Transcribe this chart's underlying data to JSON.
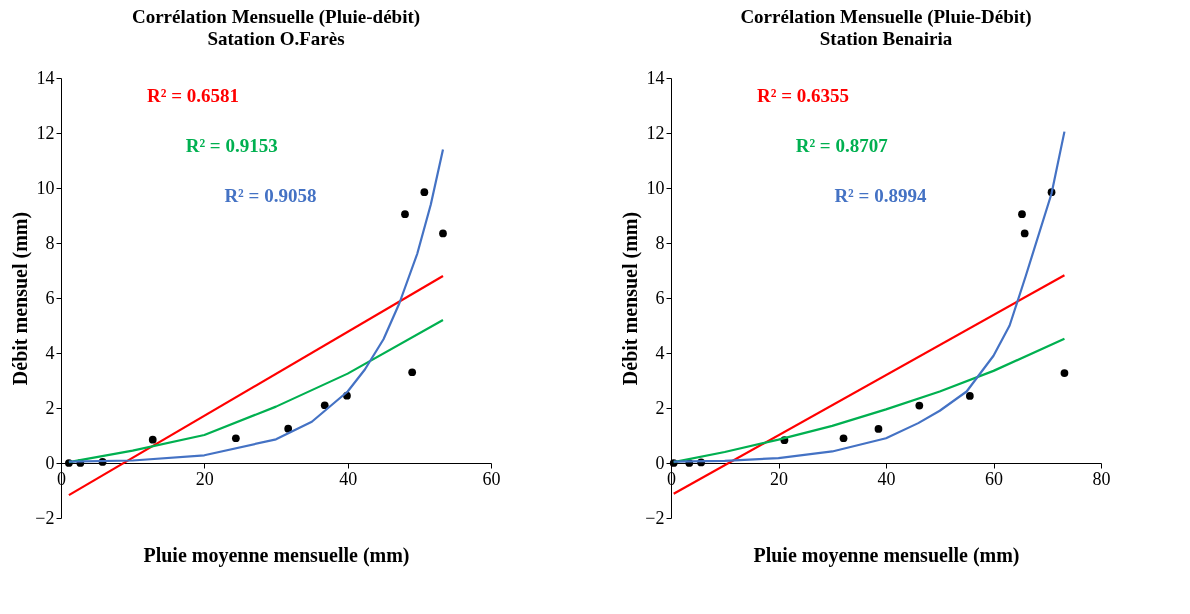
{
  "chart_data": [
    {
      "type": "scatter",
      "title": "Corrélation Mensuelle (Pluie-débit)",
      "subtitle": "Satation O.Farès",
      "xlabel": "Pluie moyenne mensuelle (mm)",
      "ylabel": "Débit mensuel (mm)",
      "xlim": [
        0,
        60
      ],
      "xticks": [
        0,
        20,
        40,
        60
      ],
      "ylim": [
        -2,
        14
      ],
      "yticks": [
        -2,
        0,
        2,
        4,
        6,
        8,
        10,
        12,
        14
      ],
      "grid": false,
      "legend": false,
      "series": [
        {
          "color": "#000000",
          "marker": "circle",
          "x": [
            1.1,
            2.7,
            5.8,
            12.8,
            24.4,
            31.7,
            36.8,
            39.9,
            48.0,
            49.0,
            50.7,
            53.3
          ],
          "values": [
            0,
            0,
            0.04,
            0.85,
            0.9,
            1.25,
            2.1,
            2.45,
            9.05,
            3.3,
            9.85,
            8.35
          ]
        },
        {
          "type": "line",
          "name": "R² = 0.6581",
          "color": "#ff0000",
          "x": [
            1.1,
            53.3
          ],
          "values": [
            -1.17,
            6.8
          ]
        },
        {
          "type": "line",
          "name": "R² = 0.9153",
          "color": "#00b050",
          "x": [
            1.1,
            10,
            20,
            30,
            40,
            53.3
          ],
          "values": [
            0.03,
            0.45,
            1.02,
            2.05,
            3.25,
            5.2
          ]
        },
        {
          "type": "line",
          "name": "R² = 0.9058",
          "color": "#4472c4",
          "x": [
            1.1,
            10,
            20,
            30,
            35,
            40,
            42.4,
            45,
            47.2,
            49.7,
            51.6,
            53.3
          ],
          "values": [
            0.05,
            0.09,
            0.28,
            0.86,
            1.5,
            2.6,
            3.4,
            4.5,
            5.8,
            7.6,
            9.4,
            11.4
          ]
        }
      ]
    },
    {
      "type": "scatter",
      "title": "Corrélation Mensuelle (Pluie-Débit)",
      "subtitle": "Station Benairia",
      "xlabel": "Pluie moyenne mensuelle (mm)",
      "ylabel": "Débit mensuel (mm)",
      "xlim": [
        0,
        80
      ],
      "xticks": [
        0,
        20,
        40,
        60,
        80
      ],
      "ylim": [
        -2,
        14
      ],
      "yticks": [
        -2,
        0,
        2,
        4,
        6,
        8,
        10,
        12,
        14
      ],
      "grid": false,
      "legend": false,
      "series": [
        {
          "color": "#000000",
          "marker": "circle",
          "x": [
            0.5,
            3.4,
            5.6,
            21.1,
            32.1,
            38.6,
            46.2,
            55.6,
            65.3,
            65.8,
            70.8,
            73.2
          ],
          "values": [
            0,
            0,
            0.02,
            0.83,
            0.9,
            1.24,
            2.09,
            2.44,
            9.05,
            8.35,
            9.85,
            3.27
          ]
        },
        {
          "type": "line",
          "name": "R² = 0.6355",
          "color": "#ff0000",
          "x": [
            0.5,
            73.2
          ],
          "values": [
            -1.12,
            6.83
          ]
        },
        {
          "type": "line",
          "name": "R² = 0.8707",
          "color": "#00b050",
          "x": [
            0.5,
            10,
            20,
            30,
            40,
            50,
            60,
            73.2
          ],
          "values": [
            0.03,
            0.4,
            0.85,
            1.35,
            1.95,
            2.6,
            3.35,
            4.52
          ]
        },
        {
          "type": "line",
          "name": "R² = 0.8994",
          "color": "#4472c4",
          "x": [
            0.5,
            10,
            20,
            30,
            40,
            46,
            50,
            55,
            60,
            63,
            66,
            70.8,
            73.2
          ],
          "values": [
            0.05,
            0.08,
            0.18,
            0.42,
            0.9,
            1.45,
            1.9,
            2.6,
            3.9,
            5.0,
            6.8,
            9.8,
            12.05
          ]
        }
      ]
    }
  ]
}
